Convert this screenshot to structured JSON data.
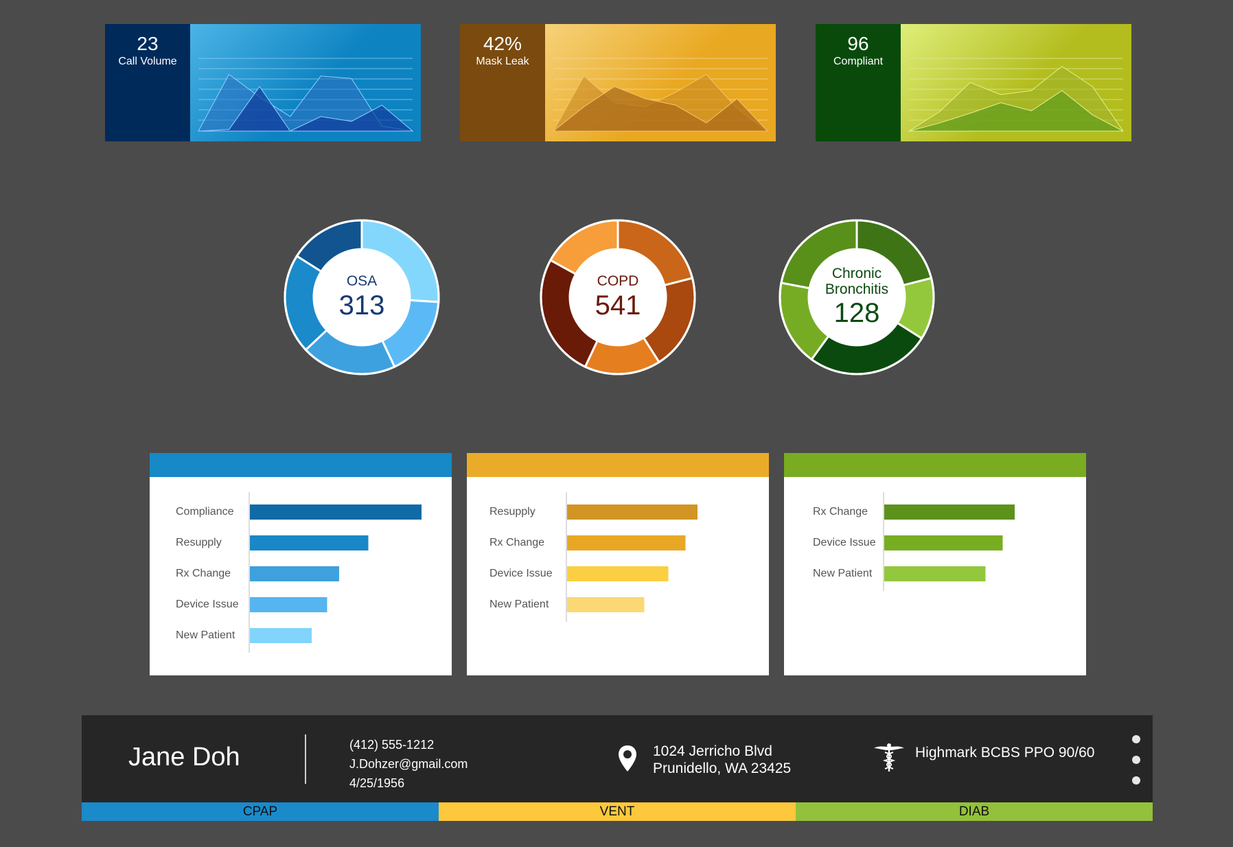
{
  "kpis": [
    {
      "value": "23",
      "label": "Call Volume",
      "colors": {
        "side": "#002a5a",
        "bg_from": "#4bb4e6",
        "bg_to": "#0e83c2",
        "fill_back": "#2d6fc0",
        "fill_front": "#0f3a9a",
        "stroke": "#8fd0ff",
        "grid": "#8ccdf0"
      },
      "series": [
        [
          0,
          70,
          42,
          18,
          68,
          65,
          6,
          0
        ],
        [
          0,
          2,
          55,
          0,
          18,
          12,
          32,
          0
        ]
      ]
    },
    {
      "value": "42%",
      "label": "Mask Leak",
      "colors": {
        "side": "#7a4a0e",
        "bg_from": "#f6d27a",
        "bg_to": "#e9a821",
        "fill_back": "#c48522",
        "fill_front": "#a8681a",
        "stroke": "#f3c56a",
        "grid": "#f6d794"
      },
      "series": [
        [
          0,
          68,
          35,
          30,
          48,
          70,
          28,
          0
        ],
        [
          0,
          30,
          55,
          40,
          32,
          10,
          40,
          0
        ]
      ]
    },
    {
      "value": "96",
      "label": "Compliant",
      "colors": {
        "side": "#094a0b",
        "bg_from": "#dfee7a",
        "bg_to": "#b3bd1e",
        "fill_back": "#9db02a",
        "fill_front": "#5e9b1c",
        "stroke": "#e6f08a",
        "grid": "#dfe99a"
      },
      "series": [
        [
          0,
          24,
          60,
          45,
          50,
          80,
          55,
          0
        ],
        [
          0,
          10,
          22,
          35,
          25,
          50,
          20,
          0
        ]
      ]
    }
  ],
  "donuts": [
    {
      "name": "OSA",
      "value": "313",
      "text_color": "#163a73",
      "value_color": "#163a73",
      "segments": [
        {
          "value": 26,
          "color": "#84d7fc"
        },
        {
          "value": 17,
          "color": "#5bbaf6"
        },
        {
          "value": 20,
          "color": "#3ea1df"
        },
        {
          "value": 21,
          "color": "#1a8acb"
        },
        {
          "value": 16,
          "color": "#11548f"
        }
      ]
    },
    {
      "name": "COPD",
      "value": "541",
      "text_color": "#6b1a0d",
      "value_color": "#6b1a0d",
      "segments": [
        {
          "value": 21,
          "color": "#ca6619"
        },
        {
          "value": 20,
          "color": "#a9480f"
        },
        {
          "value": 16,
          "color": "#e57e1f"
        },
        {
          "value": 26,
          "color": "#6a1b07"
        },
        {
          "value": 17,
          "color": "#f79d3a"
        }
      ]
    },
    {
      "name": "Chronic Bronchitis",
      "value": "128",
      "text_color": "#0b4a12",
      "value_color": "#0b4a12",
      "segments": [
        {
          "value": 21,
          "color": "#3e7416"
        },
        {
          "value": 13,
          "color": "#93c83d"
        },
        {
          "value": 26,
          "color": "#0b4a0f"
        },
        {
          "value": 18,
          "color": "#76ac24"
        },
        {
          "value": 22,
          "color": "#58901a"
        }
      ]
    }
  ],
  "panels": [
    {
      "header_color": "#1789c7",
      "bars": [
        {
          "label": "Compliance",
          "value": 100,
          "color": "#0f6aa6"
        },
        {
          "label": "Resupply",
          "value": 69,
          "color": "#1a87c6"
        },
        {
          "label": "Rx Change",
          "value": 52,
          "color": "#3ea0dd"
        },
        {
          "label": "Device Issue",
          "value": 45,
          "color": "#55b5f0"
        },
        {
          "label": "New Patient",
          "value": 36,
          "color": "#81d4fb"
        }
      ]
    },
    {
      "header_color": "#eaac28",
      "bars": [
        {
          "label": "Resupply",
          "value": 76,
          "color": "#d29524"
        },
        {
          "label": "Rx Change",
          "value": 69,
          "color": "#e9a726"
        },
        {
          "label": "Device Issue",
          "value": 59,
          "color": "#fccf42"
        },
        {
          "label": "New Patient",
          "value": 45,
          "color": "#fbd873"
        }
      ]
    },
    {
      "header_color": "#7aac22",
      "bars": [
        {
          "label": "Rx Change",
          "value": 76,
          "color": "#5c921c"
        },
        {
          "label": "Device Issue",
          "value": 69,
          "color": "#78ad22"
        },
        {
          "label": "New Patient",
          "value": 59,
          "color": "#93c73e"
        }
      ]
    }
  ],
  "patient": {
    "name": "Jane Doh",
    "phone": "(412) 555-1212",
    "email": "J.Dohzer@gmail.com",
    "dob": "4/25/1956",
    "address_line1": "1024 Jerricho Blvd",
    "address_line2": "Prunidello, WA 23425",
    "insurance": "Highmark BCBS PPO 90/60",
    "icons": {
      "location": "map-pin-icon",
      "insurance": "caduceus-icon",
      "menu": "vertical-dots-icon"
    }
  },
  "tabs": [
    {
      "label": "CPAP",
      "color": "#1a8acb"
    },
    {
      "label": "VENT",
      "color": "#fdc83c"
    },
    {
      "label": "DIAB",
      "color": "#93c13b"
    }
  ]
}
